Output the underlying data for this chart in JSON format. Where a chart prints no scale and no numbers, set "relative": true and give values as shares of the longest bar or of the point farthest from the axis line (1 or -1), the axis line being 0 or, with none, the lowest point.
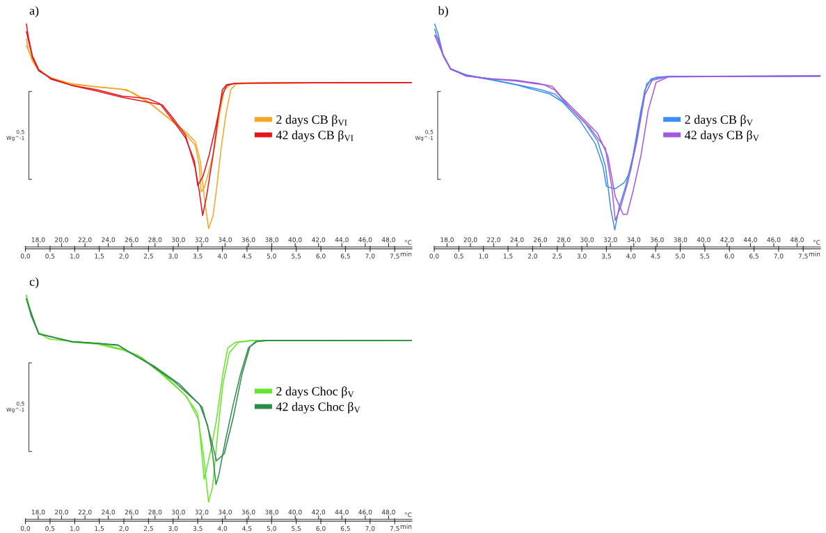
{
  "chart_data": [
    {
      "type": "line",
      "title": "a)",
      "xlabel": "min",
      "x2label": "°C",
      "relative": true,
      "legend": "right",
      "annotations": [
        "0,5\nWg^-1"
      ],
      "xlim": [
        0,
        7.85
      ],
      "xticks": [
        {
          "value": 0,
          "label": "0,0"
        },
        {
          "value": 0.5,
          "label": "0,5"
        },
        {
          "value": 1,
          "label": "1,0"
        },
        {
          "value": 1.5,
          "label": "1,5"
        },
        {
          "value": 2,
          "label": "2,0"
        },
        {
          "value": 2.5,
          "label": "2,5"
        },
        {
          "value": 3,
          "label": "3,0"
        },
        {
          "value": 3.5,
          "label": "3,5"
        },
        {
          "value": 4,
          "label": "4,0"
        },
        {
          "value": 4.5,
          "label": "4,5"
        },
        {
          "value": 5,
          "label": "5,0"
        },
        {
          "value": 5.5,
          "label": "5,5"
        },
        {
          "value": 6,
          "label": "6,0"
        },
        {
          "value": 6.5,
          "label": "6,5"
        },
        {
          "value": 7,
          "label": "7,0"
        },
        {
          "value": 7.5,
          "label": "7,5"
        }
      ],
      "x2lim": [
        16.9,
        50.0
      ],
      "x2ticks": [
        {
          "value": 18,
          "label": "18,0"
        },
        {
          "value": 20,
          "label": "20,0"
        },
        {
          "value": 22,
          "label": "22,0"
        },
        {
          "value": 24,
          "label": "24,0"
        },
        {
          "value": 26,
          "label": "26,0"
        },
        {
          "value": 28,
          "label": "28,0"
        },
        {
          "value": 30,
          "label": "30,0"
        },
        {
          "value": 32,
          "label": "32,0"
        },
        {
          "value": 34,
          "label": "34,0"
        },
        {
          "value": 36,
          "label": "36,0"
        },
        {
          "value": 38,
          "label": "38,0"
        },
        {
          "value": 40,
          "label": "40,0"
        },
        {
          "value": 42,
          "label": "42,0"
        },
        {
          "value": 44,
          "label": "44,0"
        },
        {
          "value": 46,
          "label": "46,0"
        },
        {
          "value": 48,
          "label": "48,0"
        }
      ],
      "series": [
        {
          "name": "2 days CB β$_{VI}$",
          "color": "#f5a623",
          "x": [
            0.02,
            0.06,
            0.14,
            0.27,
            0.52,
            0.93,
            1.45,
            1.96,
            2.17,
            2.48,
            2.73,
            2.99,
            3.25,
            3.45,
            3.55,
            3.63,
            3.72,
            3.81,
            3.89,
            3.97,
            4.07,
            4.17,
            4.27,
            4.53,
            5.04,
            7.84
          ],
          "values": [
            0.932,
            0.888,
            0.837,
            0.792,
            0.759,
            0.732,
            0.721,
            0.71,
            0.697,
            0.657,
            0.612,
            0.568,
            0.522,
            0.477,
            0.393,
            0.235,
            0.09,
            0.146,
            0.281,
            0.438,
            0.596,
            0.708,
            0.732,
            0.738,
            0.74,
            0.74
          ]
        },
        {
          "color": "#f5a623",
          "x": [
            0.02,
            0.14,
            0.27,
            0.52,
            0.93,
            1.45,
            2.06,
            2.32,
            2.58,
            2.89,
            3.19,
            3.45,
            3.53,
            3.57,
            3.63,
            3.73,
            3.84,
            3.94,
            4.04,
            4.17,
            4.43,
            7.84
          ],
          "values": [
            0.904,
            0.843,
            0.795,
            0.761,
            0.735,
            0.721,
            0.708,
            0.674,
            0.64,
            0.584,
            0.528,
            0.46,
            0.371,
            0.253,
            0.27,
            0.348,
            0.449,
            0.596,
            0.708,
            0.732,
            0.738,
            0.74
          ]
        },
        {
          "name": "42 days CB β$_{VI}$",
          "color": "#e8141c",
          "x": [
            0.02,
            0.06,
            0.14,
            0.27,
            0.52,
            0.93,
            1.45,
            1.96,
            2.37,
            2.78,
            2.99,
            3.25,
            3.45,
            3.53,
            3.6,
            3.68,
            3.81,
            3.92,
            4.0,
            4.09,
            4.27,
            7.84
          ],
          "values": [
            1.0,
            0.944,
            0.86,
            0.798,
            0.755,
            0.728,
            0.702,
            0.674,
            0.657,
            0.64,
            0.584,
            0.506,
            0.359,
            0.258,
            0.148,
            0.235,
            0.416,
            0.596,
            0.708,
            0.731,
            0.737,
            0.74
          ]
        },
        {
          "color": "#e8141c",
          "x": [
            0.02,
            0.14,
            0.27,
            0.52,
            0.93,
            1.45,
            1.96,
            2.48,
            2.73,
            2.99,
            3.25,
            3.43,
            3.5,
            3.61,
            3.73,
            3.86,
            4.0,
            4.09,
            4.27,
            7.84
          ],
          "values": [
            0.966,
            0.854,
            0.792,
            0.759,
            0.728,
            0.708,
            0.68,
            0.669,
            0.646,
            0.573,
            0.494,
            0.393,
            0.281,
            0.325,
            0.416,
            0.539,
            0.685,
            0.728,
            0.737,
            0.74
          ]
        }
      ]
    },
    {
      "type": "line",
      "title": "b)",
      "xlabel": "min",
      "x2label": "°C",
      "relative": true,
      "legend": "right",
      "annotations": [
        "0,5\nWg^-1"
      ],
      "xlim": [
        0,
        7.85
      ],
      "xticks": [
        {
          "value": 0,
          "label": "0,0"
        },
        {
          "value": 0.5,
          "label": "0,5"
        },
        {
          "value": 1,
          "label": "1,0"
        },
        {
          "value": 1.5,
          "label": "1,5"
        },
        {
          "value": 2,
          "label": "2,0"
        },
        {
          "value": 2.5,
          "label": "2,5"
        },
        {
          "value": 3,
          "label": "3,0"
        },
        {
          "value": 3.5,
          "label": "3,5"
        },
        {
          "value": 4,
          "label": "4,0"
        },
        {
          "value": 4.5,
          "label": "4,5"
        },
        {
          "value": 5,
          "label": "5,0"
        },
        {
          "value": 5.5,
          "label": "5,5"
        },
        {
          "value": 6,
          "label": "6,0"
        },
        {
          "value": 6.5,
          "label": "6,5"
        },
        {
          "value": 7,
          "label": "7,0"
        },
        {
          "value": 7.5,
          "label": "7,5"
        }
      ],
      "x2lim": [
        16.9,
        50.0
      ],
      "x2ticks": [
        {
          "value": 18,
          "label": "18,0"
        },
        {
          "value": 20,
          "label": "20,0"
        },
        {
          "value": 22,
          "label": "22,0"
        },
        {
          "value": 24,
          "label": "24,0"
        },
        {
          "value": 26,
          "label": "26,0"
        },
        {
          "value": 28,
          "label": "28,0"
        },
        {
          "value": 30,
          "label": "30,0"
        },
        {
          "value": 32,
          "label": "32,0"
        },
        {
          "value": 34,
          "label": "34,0"
        },
        {
          "value": 36,
          "label": "36,0"
        },
        {
          "value": 38,
          "label": "38,0"
        },
        {
          "value": 40,
          "label": "40,0"
        },
        {
          "value": 42,
          "label": "42,0"
        },
        {
          "value": 44,
          "label": "44,0"
        },
        {
          "value": 46,
          "label": "46,0"
        },
        {
          "value": 48,
          "label": "48,0"
        }
      ],
      "series": [
        {
          "name": "2 days CB β$_{V}$",
          "color": "#3d8ef0",
          "x": [
            0.01,
            0.08,
            0.18,
            0.33,
            0.64,
            1.16,
            1.68,
            2.19,
            2.45,
            2.76,
            3.07,
            3.32,
            3.48,
            3.59,
            3.67,
            3.76,
            3.89,
            4.04,
            4.2,
            4.32,
            4.5,
            4.76,
            7.84
          ],
          "values": [
            1.0,
            0.955,
            0.864,
            0.802,
            0.775,
            0.754,
            0.731,
            0.707,
            0.689,
            0.628,
            0.56,
            0.48,
            0.368,
            0.176,
            0.084,
            0.187,
            0.278,
            0.413,
            0.616,
            0.735,
            0.763,
            0.767,
            0.769
          ]
        },
        {
          "color": "#3d8ef0",
          "x": [
            0.01,
            0.18,
            0.33,
            0.64,
            1.16,
            1.68,
            2.35,
            2.6,
            2.96,
            3.27,
            3.43,
            3.5,
            3.68,
            3.86,
            3.99,
            4.15,
            4.28,
            4.41,
            4.76,
            7.84
          ],
          "values": [
            0.977,
            0.859,
            0.799,
            0.772,
            0.752,
            0.729,
            0.689,
            0.655,
            0.571,
            0.469,
            0.368,
            0.278,
            0.267,
            0.294,
            0.346,
            0.537,
            0.707,
            0.757,
            0.767,
            0.769
          ]
        },
        {
          "name": "42 days CB β$_{V}$",
          "color": "#a259e0",
          "x": [
            0.01,
            0.08,
            0.18,
            0.33,
            0.64,
            1.16,
            1.68,
            2.14,
            2.4,
            2.6,
            2.96,
            3.32,
            3.53,
            3.68,
            3.84,
            3.92,
            4.04,
            4.2,
            4.35,
            4.51,
            4.76,
            7.84
          ],
          "values": [
            0.95,
            0.938,
            0.864,
            0.802,
            0.769,
            0.757,
            0.75,
            0.735,
            0.723,
            0.673,
            0.594,
            0.514,
            0.413,
            0.233,
            0.153,
            0.153,
            0.255,
            0.413,
            0.616,
            0.741,
            0.765,
            0.769
          ]
        },
        {
          "color": "#a259e0",
          "x": [
            0.01,
            0.18,
            0.33,
            0.64,
            1.16,
            1.68,
            2.24,
            2.45,
            2.76,
            3.17,
            3.48,
            3.61,
            3.68,
            3.79,
            3.94,
            4.12,
            4.28,
            4.43,
            4.76,
            7.84
          ],
          "values": [
            0.95,
            0.863,
            0.801,
            0.77,
            0.756,
            0.746,
            0.729,
            0.707,
            0.628,
            0.537,
            0.447,
            0.275,
            0.126,
            0.187,
            0.3,
            0.48,
            0.684,
            0.75,
            0.766,
            0.769
          ]
        }
      ]
    },
    {
      "type": "line",
      "title": "c)",
      "xlabel": "min",
      "x2label": "°C",
      "relative": true,
      "legend": "right",
      "annotations": [
        "0,5\nWg^-1"
      ],
      "xlim": [
        0,
        7.85
      ],
      "xticks": [
        {
          "value": 0,
          "label": "0,0"
        },
        {
          "value": 0.5,
          "label": "0,5"
        },
        {
          "value": 1,
          "label": "1,0"
        },
        {
          "value": 1.5,
          "label": "1,5"
        },
        {
          "value": 2,
          "label": "2,0"
        },
        {
          "value": 2.5,
          "label": "2,5"
        },
        {
          "value": 3,
          "label": "3,0"
        },
        {
          "value": 3.5,
          "label": "3,5"
        },
        {
          "value": 4,
          "label": "4,0"
        },
        {
          "value": 4.5,
          "label": "4,5"
        },
        {
          "value": 5,
          "label": "5,0"
        },
        {
          "value": 5.5,
          "label": "5,5"
        },
        {
          "value": 6,
          "label": "6,0"
        },
        {
          "value": 6.5,
          "label": "6,5"
        },
        {
          "value": 7,
          "label": "7,0"
        },
        {
          "value": 7.5,
          "label": "7,5"
        }
      ],
      "x2lim": [
        16.9,
        50.0
      ],
      "x2ticks": [
        {
          "value": 18,
          "label": "18,0"
        },
        {
          "value": 20,
          "label": "20,0"
        },
        {
          "value": 22,
          "label": "22,0"
        },
        {
          "value": 24,
          "label": "24,0"
        },
        {
          "value": 26,
          "label": "26,0"
        },
        {
          "value": 28,
          "label": "28,0"
        },
        {
          "value": 30,
          "label": "30,0"
        },
        {
          "value": 32,
          "label": "32,0"
        },
        {
          "value": 34,
          "label": "34,0"
        },
        {
          "value": 36,
          "label": "36,0"
        },
        {
          "value": 38,
          "label": "38,0"
        },
        {
          "value": 40,
          "label": "40,0"
        },
        {
          "value": 42,
          "label": "42,0"
        },
        {
          "value": 44,
          "label": "44,0"
        },
        {
          "value": 46,
          "label": "46,0"
        },
        {
          "value": 48,
          "label": "48,0"
        }
      ],
      "series": [
        {
          "name": "2 days Choc β$_{V}$",
          "color": "#66e62a",
          "x": [
            0.02,
            0.12,
            0.27,
            0.48,
            0.95,
            1.47,
            1.99,
            2.3,
            2.76,
            3.23,
            3.49,
            3.62,
            3.72,
            3.8,
            3.91,
            4.01,
            4.14,
            4.32,
            4.58,
            7.84
          ],
          "values": [
            1.0,
            0.915,
            0.834,
            0.806,
            0.795,
            0.787,
            0.76,
            0.732,
            0.652,
            0.561,
            0.481,
            0.288,
            0.084,
            0.15,
            0.401,
            0.606,
            0.744,
            0.791,
            0.799,
            0.8
          ]
        },
        {
          "color": "#66e62a",
          "x": [
            0.02,
            0.12,
            0.27,
            0.95,
            1.47,
            1.99,
            2.35,
            2.82,
            3.28,
            3.52,
            3.63,
            3.75,
            3.88,
            4.01,
            4.11,
            4.27,
            4.58,
            7.84
          ],
          "values": [
            0.995,
            0.908,
            0.832,
            0.792,
            0.783,
            0.756,
            0.726,
            0.647,
            0.55,
            0.447,
            0.185,
            0.299,
            0.447,
            0.652,
            0.767,
            0.792,
            0.799,
            0.8
          ]
        },
        {
          "name": "42 days Choc β$_{V}$",
          "color": "#2e8b46",
          "x": [
            0.02,
            0.12,
            0.27,
            0.95,
            1.47,
            1.88,
            2.14,
            2.5,
            3.02,
            3.54,
            3.7,
            3.8,
            3.87,
            3.93,
            4.06,
            4.22,
            4.37,
            4.53,
            4.68,
            4.89,
            7.84
          ],
          "values": [
            0.983,
            0.908,
            0.829,
            0.795,
            0.787,
            0.78,
            0.744,
            0.698,
            0.618,
            0.516,
            0.424,
            0.299,
            0.162,
            0.207,
            0.355,
            0.516,
            0.652,
            0.767,
            0.795,
            0.799,
            0.8
          ]
        },
        {
          "color": "#2e8b46",
          "x": [
            0.02,
            0.27,
            0.95,
            1.47,
            1.88,
            2.19,
            2.61,
            3.13,
            3.59,
            3.78,
            3.88,
            4.04,
            4.22,
            4.4,
            4.56,
            4.71,
            4.89,
            7.84
          ],
          "values": [
            0.983,
            0.828,
            0.794,
            0.786,
            0.778,
            0.738,
            0.687,
            0.606,
            0.504,
            0.355,
            0.267,
            0.299,
            0.458,
            0.652,
            0.772,
            0.796,
            0.799,
            0.8
          ]
        }
      ]
    }
  ]
}
